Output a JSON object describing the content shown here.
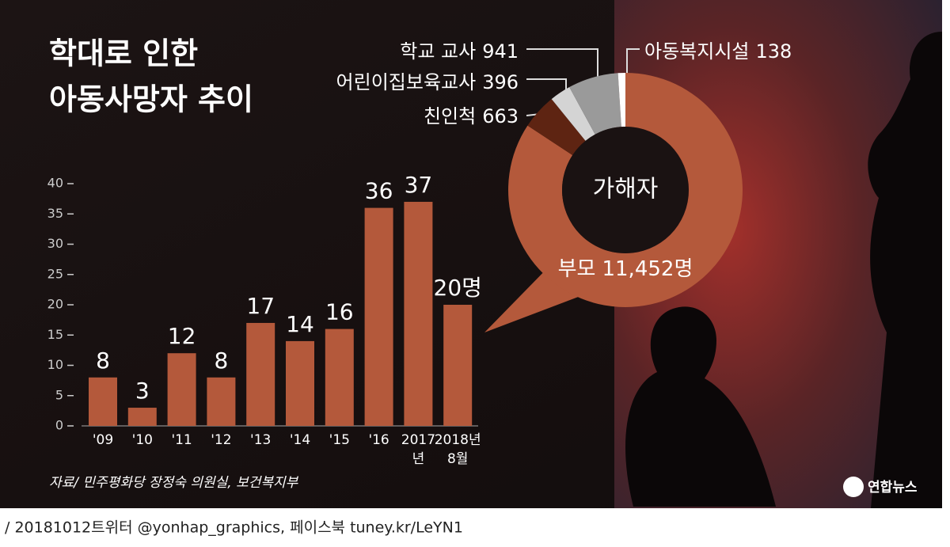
{
  "title": [
    "학대로 인한",
    "아동사망자 추이"
  ],
  "source": "자료/ 민주평화당 장정숙 의원실, 보건복지부",
  "logo": "연합뉴스",
  "footer": "/ 20181012트위터 @yonhap_graphics, 페이스북 tuney.kr/LeYN1",
  "chart_data": [
    {
      "type": "bar",
      "categories": [
        "'09",
        "'10",
        "'11",
        "'12",
        "'13",
        "'14",
        "'15",
        "'16",
        "2017\n년",
        "2018년\n8월"
      ],
      "values": [
        8,
        3,
        12,
        8,
        17,
        14,
        16,
        36,
        37,
        20
      ],
      "value_labels": [
        "8",
        "3",
        "12",
        "8",
        "17",
        "14",
        "16",
        "36",
        "37",
        "20명"
      ],
      "color": "#b4593b",
      "ylim": [
        0,
        40
      ],
      "yticks": [
        0,
        5,
        10,
        15,
        20,
        25,
        30,
        35,
        40
      ]
    },
    {
      "type": "donut",
      "center_label": "가해자",
      "categories": [
        "부모",
        "친인척",
        "어린이집보육교사",
        "학교 교사",
        "아동복지시설"
      ],
      "values": [
        11452,
        663,
        396,
        941,
        138
      ],
      "value_labels": [
        "11,452명",
        "663",
        "396",
        "941",
        "138"
      ],
      "colors": [
        "#b4593b",
        "#5e2412",
        "#d4d4d4",
        "#9a9a9a",
        "#ffffff"
      ]
    }
  ]
}
